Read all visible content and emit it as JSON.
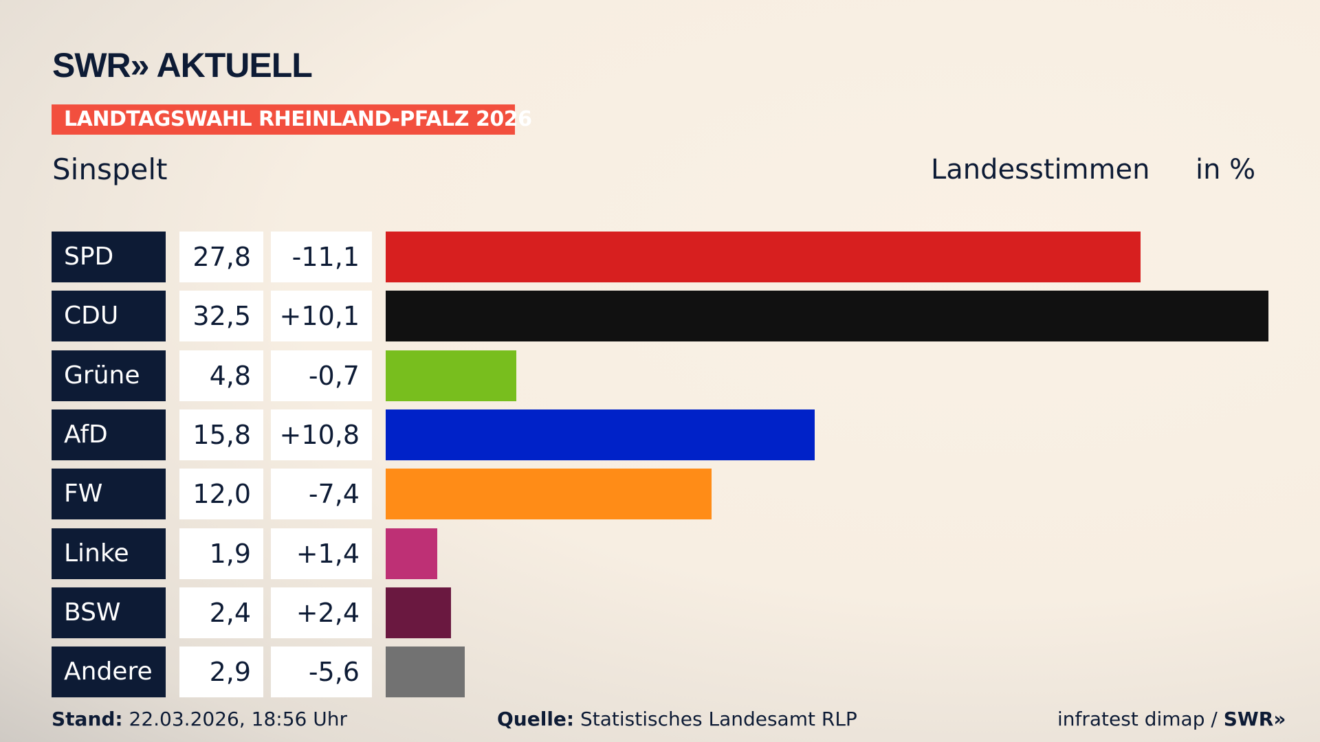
{
  "header": {
    "logo": "SWR» AKTUELL",
    "banner": "LANDTAGSWAHL RHEINLAND-PFALZ 2026",
    "region": "Sinspelt",
    "metric": "Landesstimmen",
    "unit": "in %"
  },
  "chart_data": {
    "type": "bar",
    "orientation": "horizontal",
    "title": "LANDTAGSWAHL RHEINLAND-PFALZ 2026",
    "ylabel": "Landesstimmen",
    "unit": "in %",
    "categories": [
      "SPD",
      "CDU",
      "Grüne",
      "AfD",
      "FW",
      "Linke",
      "BSW",
      "Andere"
    ],
    "values": [
      "27,8",
      "32,5",
      "4,8",
      "15,8",
      "12,0",
      "1,9",
      "2,4",
      "2,9"
    ],
    "numeric_values": [
      27.8,
      32.5,
      4.8,
      15.8,
      12.0,
      1.9,
      2.4,
      2.9
    ],
    "diffs": [
      "-11,1",
      "+10,1",
      "-0,7",
      "+10,8",
      "-7,4",
      "+1,4",
      "+2,4",
      "-5,6"
    ],
    "colors": [
      "#d71f1f",
      "#111111",
      "#78be1e",
      "#0022c8",
      "#ff8c17",
      "#be3075",
      "#6a1840",
      "#727272"
    ]
  },
  "footer": {
    "stand_label": "Stand:",
    "stand": " 22.03.2026, 18:56 Uhr",
    "source_label": "Quelle:",
    "source": " Statistisches Landesamt RLP",
    "credit": "infratest dimap / ",
    "credit_logo": "SWR»"
  }
}
